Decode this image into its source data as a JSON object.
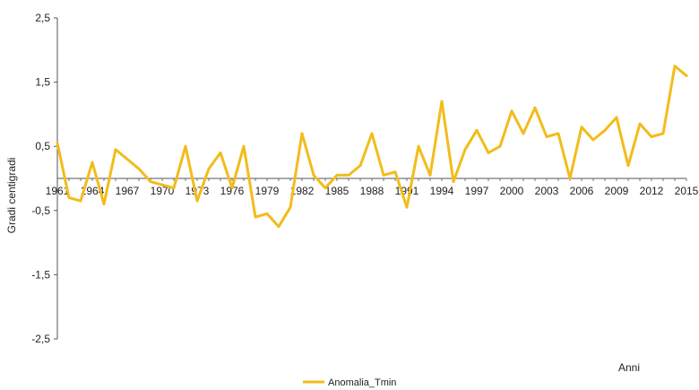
{
  "chart_data": {
    "type": "line",
    "ylabel": "Gradi centigradi",
    "xlabel": "Anni",
    "ylim": [
      -2.5,
      2.5
    ],
    "yticks": [
      "2,5",
      "1,5",
      "0,5",
      "-0,5",
      "-1,5",
      "-2,5"
    ],
    "ytick_values": [
      2.5,
      1.5,
      0.5,
      -0.5,
      -1.5,
      -2.5
    ],
    "xtick_labels": [
      "1961",
      "1964",
      "1967",
      "1970",
      "1973",
      "1976",
      "1979",
      "1982",
      "1985",
      "1988",
      "1991",
      "1994",
      "1997",
      "2000",
      "2003",
      "2006",
      "2009",
      "2012",
      "2015"
    ],
    "grid": false,
    "legend_position": "bottom-center",
    "series": [
      {
        "name": "Anomalia_Tmin",
        "color": "#f2bc1b",
        "x": [
          1961,
          1962,
          1963,
          1964,
          1965,
          1966,
          1967,
          1968,
          1969,
          1970,
          1971,
          1972,
          1973,
          1974,
          1975,
          1976,
          1977,
          1978,
          1979,
          1980,
          1981,
          1982,
          1983,
          1984,
          1985,
          1986,
          1987,
          1988,
          1989,
          1990,
          1991,
          1992,
          1993,
          1994,
          1995,
          1996,
          1997,
          1998,
          1999,
          2000,
          2001,
          2002,
          2003,
          2004,
          2005,
          2006,
          2007,
          2008,
          2009,
          2010,
          2011,
          2012,
          2013,
          2014,
          2015
        ],
        "values": [
          0.55,
          -0.3,
          -0.35,
          0.25,
          -0.4,
          0.45,
          0.3,
          0.15,
          -0.05,
          -0.1,
          -0.15,
          0.5,
          -0.35,
          0.15,
          0.4,
          -0.15,
          0.5,
          -0.6,
          -0.55,
          -0.75,
          -0.45,
          0.7,
          0.05,
          -0.15,
          0.05,
          0.05,
          0.2,
          0.7,
          0.05,
          0.1,
          -0.45,
          0.5,
          0.05,
          1.2,
          -0.05,
          0.45,
          0.75,
          0.4,
          0.5,
          1.05,
          0.7,
          1.1,
          0.65,
          0.7,
          0.0,
          0.8,
          0.6,
          0.75,
          0.95,
          0.2,
          0.85,
          0.65,
          0.7,
          1.75,
          1.6
        ]
      }
    ]
  }
}
